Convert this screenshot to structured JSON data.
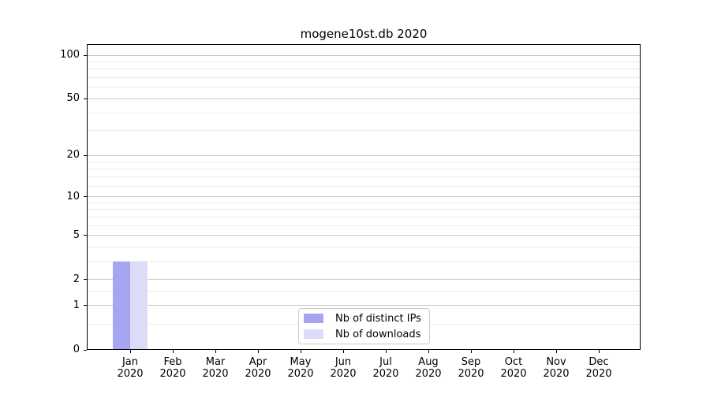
{
  "title": "mogene10st.db 2020",
  "chart_data": {
    "type": "bar",
    "title": "mogene10st.db 2020",
    "yscale": "log1p",
    "ylim": [
      0,
      117
    ],
    "grid": "horizontal-major-and-minor",
    "legend_position": "lower center",
    "categories": [
      {
        "month": "Jan",
        "year": "2020"
      },
      {
        "month": "Feb",
        "year": "2020"
      },
      {
        "month": "Mar",
        "year": "2020"
      },
      {
        "month": "Apr",
        "year": "2020"
      },
      {
        "month": "May",
        "year": "2020"
      },
      {
        "month": "Jun",
        "year": "2020"
      },
      {
        "month": "Jul",
        "year": "2020"
      },
      {
        "month": "Aug",
        "year": "2020"
      },
      {
        "month": "Sep",
        "year": "2020"
      },
      {
        "month": "Oct",
        "year": "2020"
      },
      {
        "month": "Nov",
        "year": "2020"
      },
      {
        "month": "Dec",
        "year": "2020"
      }
    ],
    "series": [
      {
        "name": "Nb of distinct IPs",
        "color": "#a5a5f2",
        "values": [
          3,
          0,
          0,
          0,
          0,
          0,
          0,
          0,
          0,
          0,
          0,
          0
        ]
      },
      {
        "name": "Nb of downloads",
        "color": "#dcdcf8",
        "values": [
          3,
          0,
          0,
          0,
          0,
          0,
          0,
          0,
          0,
          0,
          0,
          0
        ]
      }
    ],
    "y_major_ticks": [
      100,
      50,
      20,
      10,
      5,
      2,
      1,
      0
    ],
    "y_minor_ticks": [
      0.5,
      1.5,
      3,
      4,
      6,
      7,
      8,
      9,
      12,
      14,
      16,
      18,
      30,
      40,
      60,
      70,
      80,
      90
    ]
  }
}
